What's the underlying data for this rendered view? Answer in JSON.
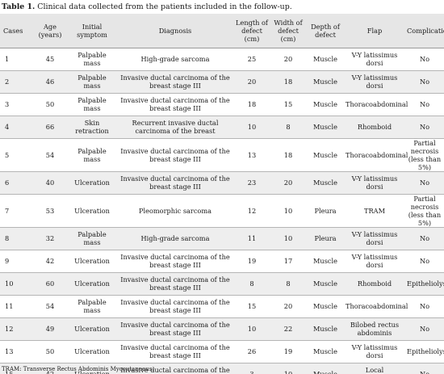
{
  "caption": {
    "label": "Table 1.",
    "text": " Clinical data collected from the patients included in the follow-up."
  },
  "headers": [
    "Cases",
    "Age (years)",
    "Initial symptom",
    "Diagnosis",
    "Length of defect (cm)",
    "Width of defect (cm)",
    "Depth of defect",
    "Flap",
    "Complications"
  ],
  "rows": [
    [
      "1",
      "45",
      "Palpable mass",
      "High-grade sarcoma",
      "25",
      "20",
      "Muscle",
      "V-Y latissimus dorsi",
      "No"
    ],
    [
      "2",
      "46",
      "Palpable mass",
      "Invasive ductal carcinoma of the breast stage III",
      "20",
      "18",
      "Muscle",
      "V-Y latissimus dorsi",
      "No"
    ],
    [
      "3",
      "50",
      "Palpable mass",
      "Invasive ductal carcinoma of the breast stage III",
      "18",
      "15",
      "Muscle",
      "Thoracoabdominal",
      "No"
    ],
    [
      "4",
      "66",
      "Skin retraction",
      "Recurrent invasive ductal carcinoma of the breast",
      "10",
      "8",
      "Muscle",
      "Rhomboid",
      "No"
    ],
    [
      "5",
      "54",
      "Palpable mass",
      "Invasive ductal carcinoma of the breast stage III",
      "13",
      "18",
      "Muscle",
      "Thoracoabdominal",
      "Partial necrosis (less than 5%)"
    ],
    [
      "6",
      "40",
      "Ulceration",
      "Invasive ductal carcinoma of the breast stage III",
      "23",
      "20",
      "Muscle",
      "V-Y latissimus dorsi",
      "No"
    ],
    [
      "7",
      "53",
      "Ulceration",
      "Pleomorphic sarcoma",
      "12",
      "10",
      "Pleura",
      "TRAM",
      "Partial necrosis (less than 5%)"
    ],
    [
      "8",
      "32",
      "Palpable mass",
      "High-grade sarcoma",
      "11",
      "10",
      "Pleura",
      "V-Y latissimus dorsi",
      "No"
    ],
    [
      "9",
      "42",
      "Ulceration",
      "Invasive ductal carcinoma of the breast stage III",
      "19",
      "17",
      "Muscle",
      "V-Y latissimus dorsi",
      "No"
    ],
    [
      "10",
      "60",
      "Ulceration",
      "Invasive ductal carcinoma of the breast stage III",
      "8",
      "8",
      "Muscle",
      "Rhomboid",
      "Epitheliolysis"
    ],
    [
      "11",
      "54",
      "Palpable mass",
      "Invasive ductal carcinoma of the breast stage III",
      "15",
      "20",
      "Muscle",
      "Thoracoabdominal",
      "No"
    ],
    [
      "12",
      "49",
      "Ulceration",
      "Invasive ductal carcinoma of the breast stage III",
      "10",
      "22",
      "Muscle",
      "Bilobed rectus abdominis",
      "No"
    ],
    [
      "13",
      "50",
      "Ulceration",
      "Invasive ductal carcinoma of the breast stage III",
      "26",
      "19",
      "Muscle",
      "V-Y latissimus dorsi",
      "Epitheliolysis"
    ],
    [
      "15",
      "42",
      "Ulceration",
      "Invasive ductal carcinoma of the breast stage III",
      "3",
      "10",
      "Muscle",
      "Local advancement",
      "No"
    ]
  ],
  "footnote": "TRAM: Transverse Rectus Abdominis Myocutaneous.",
  "colors": {
    "header_bg": "#e6e6e6",
    "alt_row_bg": "#eeeeee"
  }
}
